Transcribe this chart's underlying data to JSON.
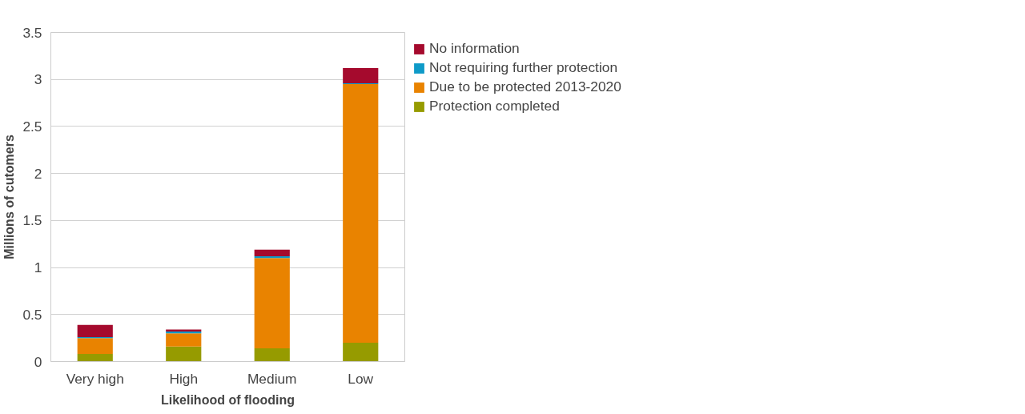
{
  "chart_data": {
    "type": "bar",
    "stacked": true,
    "xlabel": "Likelihood of flooding",
    "ylabel": "Millions of cutomers",
    "categories": [
      "Very high",
      "High",
      "Medium",
      "Low"
    ],
    "series": [
      {
        "name": "Protection completed",
        "color": "#969b00",
        "values": [
          0.08,
          0.16,
          0.14,
          0.2
        ]
      },
      {
        "name": "Due to be protected 2013-2020",
        "color": "#e98300",
        "values": [
          0.17,
          0.14,
          0.96,
          2.75
        ]
      },
      {
        "name": "Not requiring further protection",
        "color": "#0e9ac8",
        "values": [
          0.01,
          0.02,
          0.02,
          0.01
        ]
      },
      {
        "name": "No information",
        "color": "#a50a2d",
        "values": [
          0.13,
          0.02,
          0.07,
          0.16
        ]
      }
    ],
    "ylim": [
      0,
      3.5
    ],
    "yticks": [
      0,
      0.5,
      1,
      1.5,
      2,
      2.5,
      3,
      3.5
    ],
    "grid": "y",
    "legend": "top right"
  }
}
